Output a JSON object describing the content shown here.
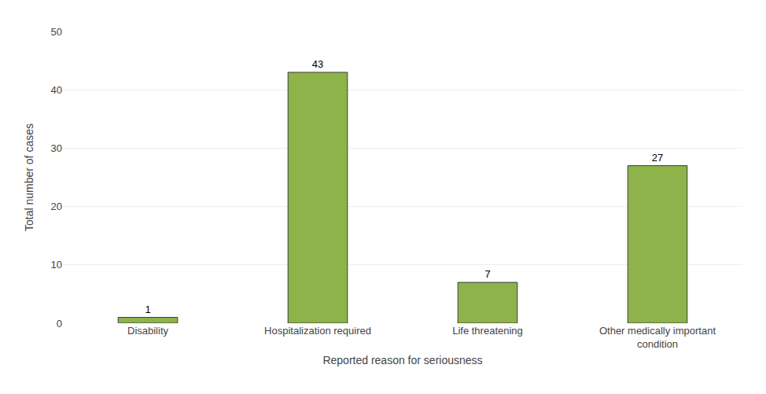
{
  "chart_data": {
    "type": "bar",
    "categories": [
      "Disability",
      "Hospitalization required",
      "Life threatening",
      "Other medically important\ncondition"
    ],
    "values": [
      1,
      43,
      7,
      27
    ],
    "color": "#8db34a",
    "xlabel": "Reported reason for seriousness",
    "ylabel": "Total number of cases",
    "ylim": [
      0,
      50
    ],
    "yticks": [
      0,
      10,
      20,
      30,
      40,
      50
    ],
    "grid": true,
    "data_labels": true
  }
}
